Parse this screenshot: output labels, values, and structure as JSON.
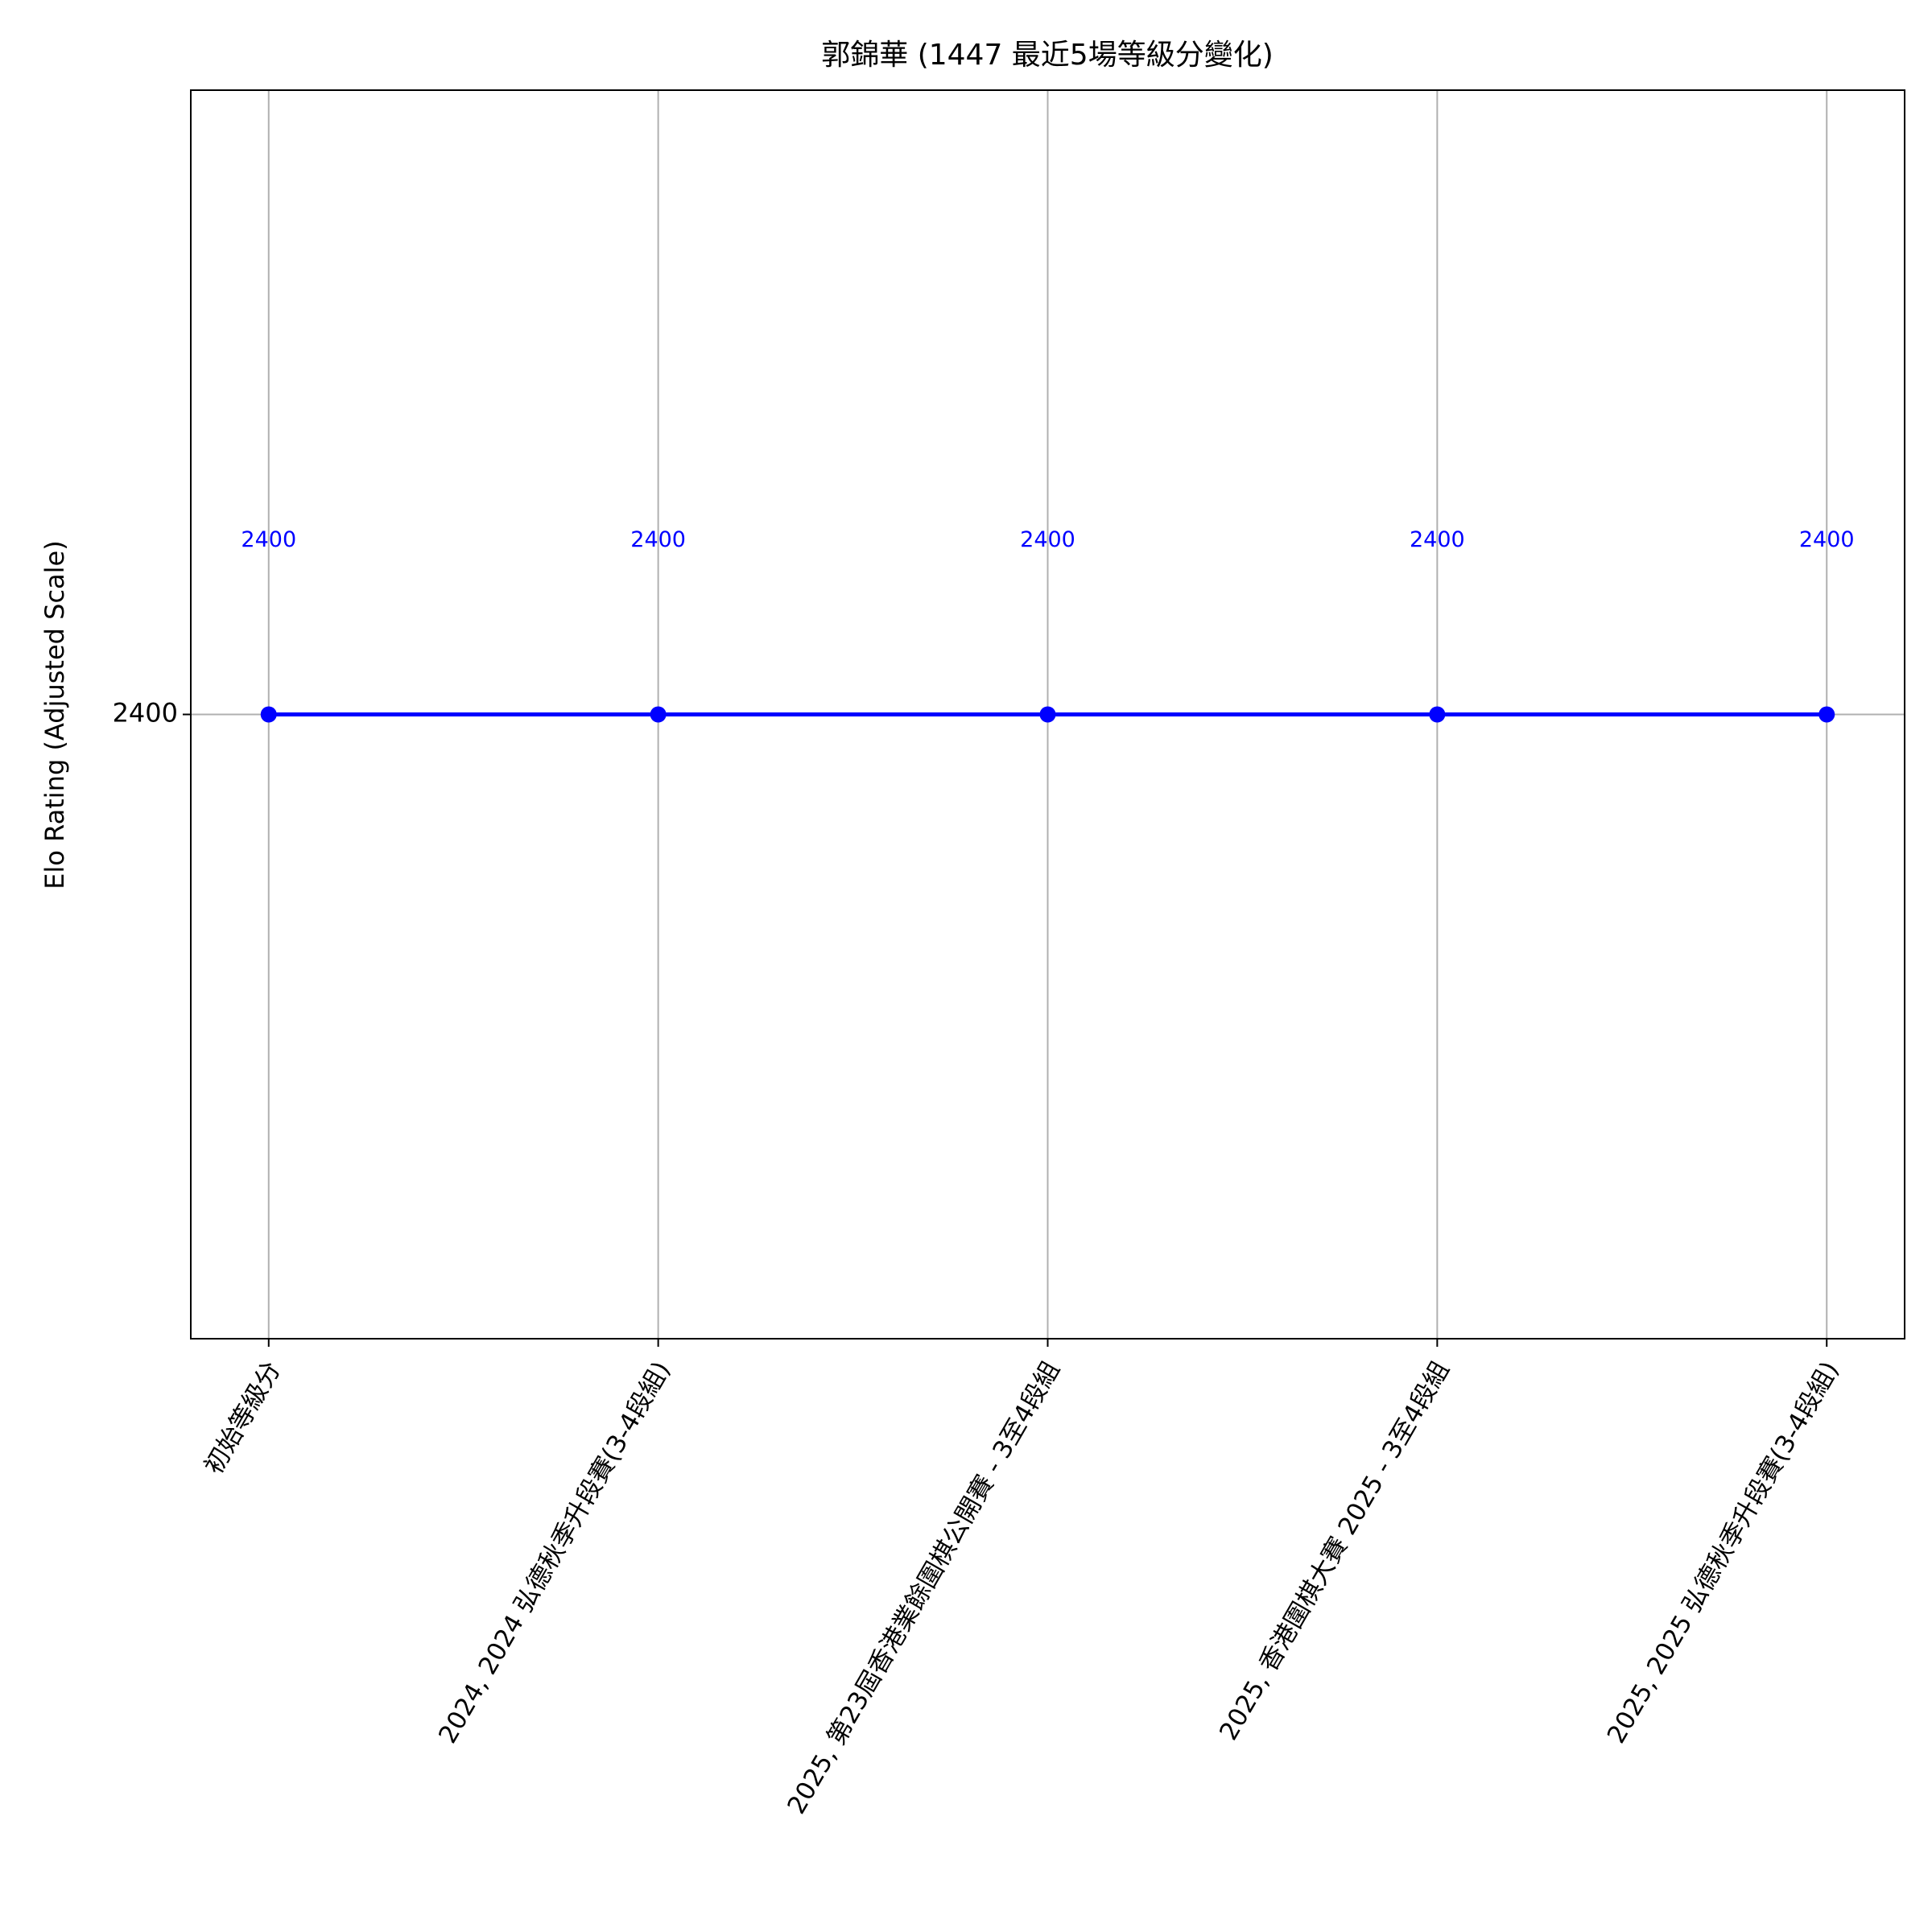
{
  "chart_data": {
    "type": "line",
    "title": "郭錦華 (1447 最近5場等級分變化)",
    "y_label": "Elo Rating (Adjusted Scale)",
    "categories": [
      "初始等級分",
      "2024, 2024 弘德秋季升段賽(3-4段組)",
      "2025, 第23屆香港業餘圍棋公開賽 - 3至4段組",
      "2025, 香港圍棋大賽 2025 - 3至4段組",
      "2025, 2025 弘德秋季升段賽(3-4段組)"
    ],
    "values": [
      2400,
      2400,
      2400,
      2400,
      2400
    ],
    "color": "#0000ff",
    "ylim": [
      2300,
      2500
    ],
    "yticks": [
      2400
    ],
    "grid": true
  }
}
